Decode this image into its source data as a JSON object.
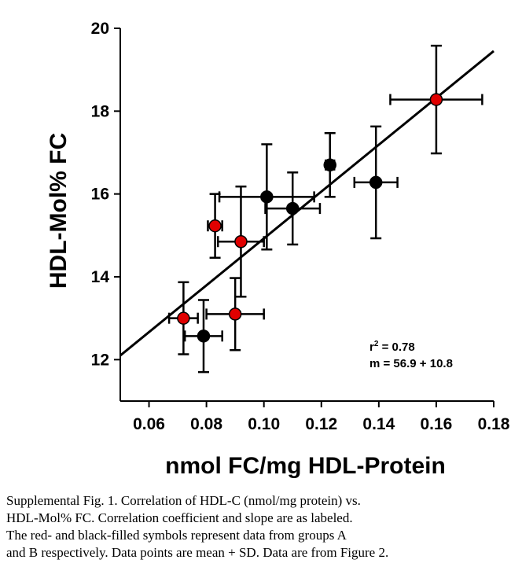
{
  "chart_data": {
    "type": "scatter",
    "title": "",
    "xlabel": "nmol FC/mg HDL-Protein",
    "ylabel": "HDL-Mol% FC",
    "xlim": [
      0.05,
      0.18
    ],
    "ylim": [
      11,
      20
    ],
    "x_ticks": [
      0.06,
      0.08,
      0.1,
      0.12,
      0.14,
      0.16,
      0.18
    ],
    "x_tick_labels": [
      "0.06",
      "0.08",
      "0.10",
      "0.12",
      "0.14",
      "0.16",
      "0.18"
    ],
    "y_ticks": [
      12,
      14,
      16,
      18,
      20
    ],
    "y_tick_labels": [
      "12",
      "14",
      "16",
      "18",
      "20"
    ],
    "series": [
      {
        "name": "Group A",
        "color": "#e00000",
        "points": [
          {
            "x": 0.072,
            "y": 13.0,
            "xerr": 0.005,
            "yerr": 0.87
          },
          {
            "x": 0.083,
            "y": 15.23,
            "xerr": 0.0025,
            "yerr": 0.77
          },
          {
            "x": 0.09,
            "y": 13.1,
            "xerr": 0.01,
            "yerr": 0.87
          },
          {
            "x": 0.092,
            "y": 14.85,
            "xerr": 0.008,
            "yerr": 1.33
          },
          {
            "x": 0.16,
            "y": 18.28,
            "xerr": 0.016,
            "yerr": 1.3
          }
        ]
      },
      {
        "name": "Group B",
        "color": "#000000",
        "points": [
          {
            "x": 0.079,
            "y": 12.57,
            "xerr": 0.0065,
            "yerr": 0.87
          },
          {
            "x": 0.101,
            "y": 15.93,
            "xerr": 0.0165,
            "yerr": 1.27
          },
          {
            "x": 0.11,
            "y": 15.65,
            "xerr": 0.0095,
            "yerr": 0.87
          },
          {
            "x": 0.123,
            "y": 16.7,
            "xerr": 0.0015,
            "yerr": 0.77
          },
          {
            "x": 0.139,
            "y": 16.28,
            "xerr": 0.0075,
            "yerr": 1.35
          }
        ]
      }
    ],
    "regression": {
      "x0": 0.05,
      "y0": 12.1,
      "x1": 0.18,
      "y1": 19.45
    },
    "annotations": {
      "r2_prefix": "r",
      "r2_sup": "2",
      "r2_value": " = 0.78",
      "slope": "m = 56.9 + 10.8"
    }
  },
  "caption": {
    "lines": [
      "Supplemental Fig. 1. Correlation of HDL-C (nmol/mg protein) vs.",
      " HDL-Mol% FC.  Correlation coefficient and slope are as labeled.",
      "The red- and black-filled symbols  represent data from groups A",
      "and B respectively. Data points are mean + SD. Data are from Figure 2."
    ]
  }
}
